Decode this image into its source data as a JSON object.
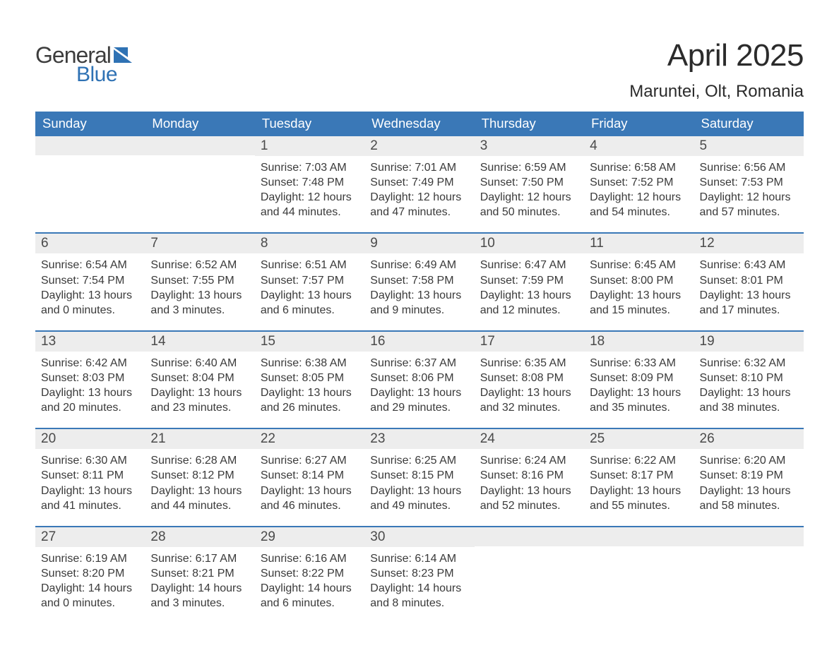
{
  "logo": {
    "general": "General",
    "blue": "Blue"
  },
  "header": {
    "month_title": "April 2025",
    "location": "Maruntei, Olt, Romania"
  },
  "colors": {
    "header_blue": "#3a78b7",
    "logo_blue": "#2f72b4",
    "daynum_bg": "#ededed",
    "text": "#3a3a3a",
    "white": "#ffffff"
  },
  "typography": {
    "title_fontsize": 44,
    "location_fontsize": 24,
    "dow_fontsize": 18.5,
    "daynum_fontsize": 19,
    "body_fontsize": 16
  },
  "calendar": {
    "dow": [
      "Sunday",
      "Monday",
      "Tuesday",
      "Wednesday",
      "Thursday",
      "Friday",
      "Saturday"
    ],
    "weeks": [
      [
        {
          "n": "",
          "sunrise": "",
          "sunset": "",
          "daylight": ""
        },
        {
          "n": "",
          "sunrise": "",
          "sunset": "",
          "daylight": ""
        },
        {
          "n": "1",
          "sunrise": "Sunrise: 7:03 AM",
          "sunset": "Sunset: 7:48 PM",
          "daylight": "Daylight: 12 hours and 44 minutes."
        },
        {
          "n": "2",
          "sunrise": "Sunrise: 7:01 AM",
          "sunset": "Sunset: 7:49 PM",
          "daylight": "Daylight: 12 hours and 47 minutes."
        },
        {
          "n": "3",
          "sunrise": "Sunrise: 6:59 AM",
          "sunset": "Sunset: 7:50 PM",
          "daylight": "Daylight: 12 hours and 50 minutes."
        },
        {
          "n": "4",
          "sunrise": "Sunrise: 6:58 AM",
          "sunset": "Sunset: 7:52 PM",
          "daylight": "Daylight: 12 hours and 54 minutes."
        },
        {
          "n": "5",
          "sunrise": "Sunrise: 6:56 AM",
          "sunset": "Sunset: 7:53 PM",
          "daylight": "Daylight: 12 hours and 57 minutes."
        }
      ],
      [
        {
          "n": "6",
          "sunrise": "Sunrise: 6:54 AM",
          "sunset": "Sunset: 7:54 PM",
          "daylight": "Daylight: 13 hours and 0 minutes."
        },
        {
          "n": "7",
          "sunrise": "Sunrise: 6:52 AM",
          "sunset": "Sunset: 7:55 PM",
          "daylight": "Daylight: 13 hours and 3 minutes."
        },
        {
          "n": "8",
          "sunrise": "Sunrise: 6:51 AM",
          "sunset": "Sunset: 7:57 PM",
          "daylight": "Daylight: 13 hours and 6 minutes."
        },
        {
          "n": "9",
          "sunrise": "Sunrise: 6:49 AM",
          "sunset": "Sunset: 7:58 PM",
          "daylight": "Daylight: 13 hours and 9 minutes."
        },
        {
          "n": "10",
          "sunrise": "Sunrise: 6:47 AM",
          "sunset": "Sunset: 7:59 PM",
          "daylight": "Daylight: 13 hours and 12 minutes."
        },
        {
          "n": "11",
          "sunrise": "Sunrise: 6:45 AM",
          "sunset": "Sunset: 8:00 PM",
          "daylight": "Daylight: 13 hours and 15 minutes."
        },
        {
          "n": "12",
          "sunrise": "Sunrise: 6:43 AM",
          "sunset": "Sunset: 8:01 PM",
          "daylight": "Daylight: 13 hours and 17 minutes."
        }
      ],
      [
        {
          "n": "13",
          "sunrise": "Sunrise: 6:42 AM",
          "sunset": "Sunset: 8:03 PM",
          "daylight": "Daylight: 13 hours and 20 minutes."
        },
        {
          "n": "14",
          "sunrise": "Sunrise: 6:40 AM",
          "sunset": "Sunset: 8:04 PM",
          "daylight": "Daylight: 13 hours and 23 minutes."
        },
        {
          "n": "15",
          "sunrise": "Sunrise: 6:38 AM",
          "sunset": "Sunset: 8:05 PM",
          "daylight": "Daylight: 13 hours and 26 minutes."
        },
        {
          "n": "16",
          "sunrise": "Sunrise: 6:37 AM",
          "sunset": "Sunset: 8:06 PM",
          "daylight": "Daylight: 13 hours and 29 minutes."
        },
        {
          "n": "17",
          "sunrise": "Sunrise: 6:35 AM",
          "sunset": "Sunset: 8:08 PM",
          "daylight": "Daylight: 13 hours and 32 minutes."
        },
        {
          "n": "18",
          "sunrise": "Sunrise: 6:33 AM",
          "sunset": "Sunset: 8:09 PM",
          "daylight": "Daylight: 13 hours and 35 minutes."
        },
        {
          "n": "19",
          "sunrise": "Sunrise: 6:32 AM",
          "sunset": "Sunset: 8:10 PM",
          "daylight": "Daylight: 13 hours and 38 minutes."
        }
      ],
      [
        {
          "n": "20",
          "sunrise": "Sunrise: 6:30 AM",
          "sunset": "Sunset: 8:11 PM",
          "daylight": "Daylight: 13 hours and 41 minutes."
        },
        {
          "n": "21",
          "sunrise": "Sunrise: 6:28 AM",
          "sunset": "Sunset: 8:12 PM",
          "daylight": "Daylight: 13 hours and 44 minutes."
        },
        {
          "n": "22",
          "sunrise": "Sunrise: 6:27 AM",
          "sunset": "Sunset: 8:14 PM",
          "daylight": "Daylight: 13 hours and 46 minutes."
        },
        {
          "n": "23",
          "sunrise": "Sunrise: 6:25 AM",
          "sunset": "Sunset: 8:15 PM",
          "daylight": "Daylight: 13 hours and 49 minutes."
        },
        {
          "n": "24",
          "sunrise": "Sunrise: 6:24 AM",
          "sunset": "Sunset: 8:16 PM",
          "daylight": "Daylight: 13 hours and 52 minutes."
        },
        {
          "n": "25",
          "sunrise": "Sunrise: 6:22 AM",
          "sunset": "Sunset: 8:17 PM",
          "daylight": "Daylight: 13 hours and 55 minutes."
        },
        {
          "n": "26",
          "sunrise": "Sunrise: 6:20 AM",
          "sunset": "Sunset: 8:19 PM",
          "daylight": "Daylight: 13 hours and 58 minutes."
        }
      ],
      [
        {
          "n": "27",
          "sunrise": "Sunrise: 6:19 AM",
          "sunset": "Sunset: 8:20 PM",
          "daylight": "Daylight: 14 hours and 0 minutes."
        },
        {
          "n": "28",
          "sunrise": "Sunrise: 6:17 AM",
          "sunset": "Sunset: 8:21 PM",
          "daylight": "Daylight: 14 hours and 3 minutes."
        },
        {
          "n": "29",
          "sunrise": "Sunrise: 6:16 AM",
          "sunset": "Sunset: 8:22 PM",
          "daylight": "Daylight: 14 hours and 6 minutes."
        },
        {
          "n": "30",
          "sunrise": "Sunrise: 6:14 AM",
          "sunset": "Sunset: 8:23 PM",
          "daylight": "Daylight: 14 hours and 8 minutes."
        },
        {
          "n": "",
          "sunrise": "",
          "sunset": "",
          "daylight": ""
        },
        {
          "n": "",
          "sunrise": "",
          "sunset": "",
          "daylight": ""
        },
        {
          "n": "",
          "sunrise": "",
          "sunset": "",
          "daylight": ""
        }
      ]
    ]
  }
}
